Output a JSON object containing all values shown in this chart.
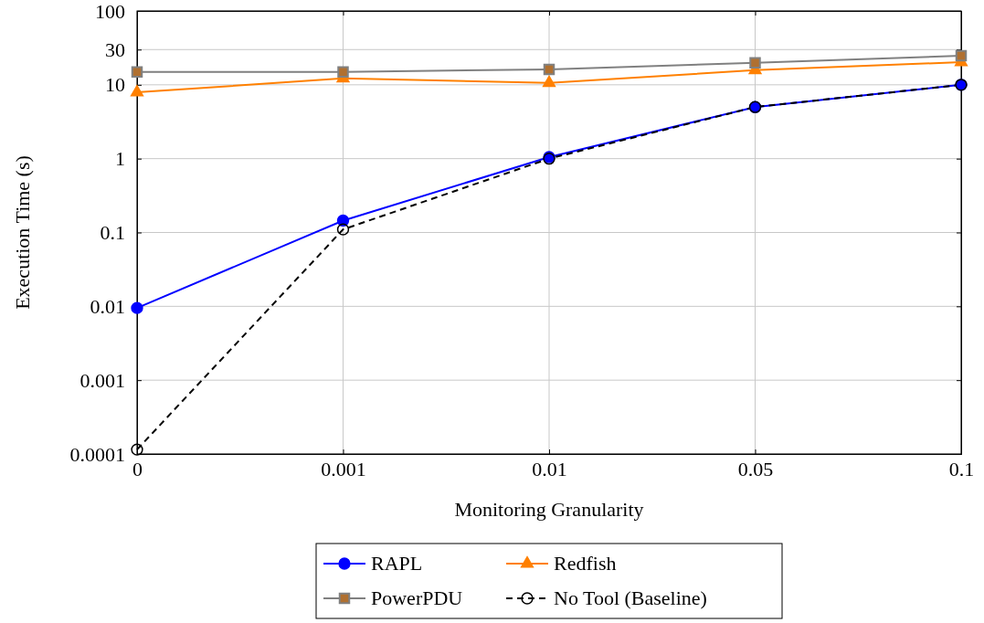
{
  "chart_data": {
    "type": "line",
    "xlabel": "Monitoring Granularity",
    "ylabel": "Execution Time (s)",
    "categories": [
      "0",
      "0.001",
      "0.01",
      "0.05",
      "0.1"
    ],
    "log": true,
    "ylim": [
      0.0001,
      100
    ],
    "yticks": [
      0.0001,
      0.001,
      0.01,
      0.1,
      1,
      10,
      30,
      100
    ],
    "grid": true,
    "legend": "bottom",
    "series": [
      {
        "name": "RAPL",
        "color": "#0000ff",
        "marker": "circle",
        "line_style": "solid",
        "values": [
          0.0095,
          0.145,
          1.05,
          5,
          10
        ]
      },
      {
        "name": "Redfish",
        "color": "#ff8000",
        "marker": "triangle",
        "line_style": "solid",
        "values": [
          7.9,
          12.2,
          10.6,
          15.8,
          20.3
        ]
      },
      {
        "name": "PowerPDU",
        "color": "#808080",
        "marker": "square",
        "line_style": "solid",
        "values": [
          14.9,
          14.9,
          16.2,
          19.8,
          24.8
        ]
      },
      {
        "name": "No Tool (Baseline)",
        "color": "#000000",
        "marker": "circle",
        "line_style": "dashed",
        "values": [
          0.000115,
          0.11,
          1.0,
          5,
          10
        ]
      }
    ]
  }
}
